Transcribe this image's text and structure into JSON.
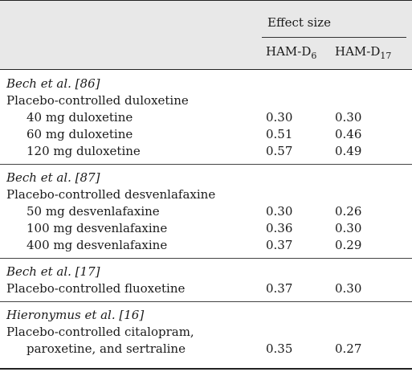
{
  "header": {
    "effect_size": "Effect size",
    "col1_main": "HAM-D",
    "col1_sub": "6",
    "col2_main": "HAM-D",
    "col2_sub": "17"
  },
  "sections": [
    {
      "citation": "Bech et al. [86]",
      "group": "Placebo-controlled duloxetine",
      "items": [
        {
          "label": "40 mg duloxetine",
          "ham_d6": "0.30",
          "ham_d17": "0.30"
        },
        {
          "label": "60 mg duloxetine",
          "ham_d6": "0.51",
          "ham_d17": "0.46"
        },
        {
          "label": "120 mg duloxetine",
          "ham_d6": "0.57",
          "ham_d17": "0.49"
        }
      ]
    },
    {
      "citation": "Bech et al. [87]",
      "group": "Placebo-controlled desvenlafaxine",
      "items": [
        {
          "label": "50 mg desvenlafaxine",
          "ham_d6": "0.30",
          "ham_d17": "0.26"
        },
        {
          "label": "100 mg desvenlafaxine",
          "ham_d6": "0.36",
          "ham_d17": "0.30"
        },
        {
          "label": "400 mg desvenlafaxine",
          "ham_d6": "0.37",
          "ham_d17": "0.29"
        }
      ]
    },
    {
      "citation": "Bech et al. [17]",
      "group": "Placebo-controlled fluoxetine",
      "group_ham_d6": "0.37",
      "group_ham_d17": "0.30"
    },
    {
      "citation": "Hieronymus et al. [16]",
      "group": "Placebo-controlled citalopram,",
      "continuation": "paroxetine, and sertraline",
      "cont_ham_d6": "0.35",
      "cont_ham_d17": "0.27"
    }
  ]
}
